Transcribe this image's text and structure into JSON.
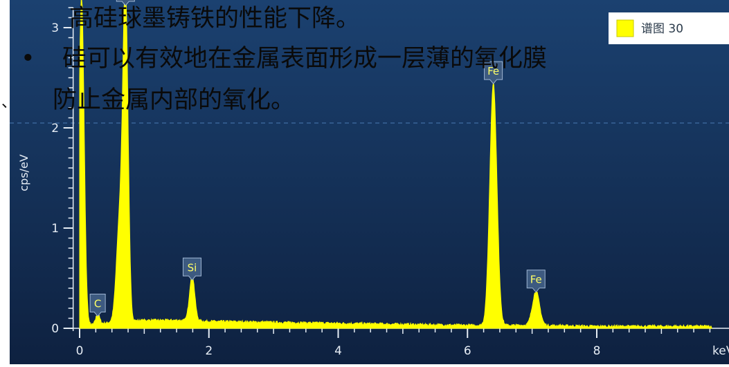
{
  "slide": {
    "line1": "高硅球墨铸铁的性能下降。",
    "bullet": "•",
    "line2": "硅可以有效地在金属表面形成一层薄的氧化膜",
    "line3": "防止金属内部的氧化。",
    "mark": "、"
  },
  "colors": {
    "background_top": "#193c66",
    "background_bottom": "#0f2442",
    "spectrum": "#ffff00",
    "axis": "#e6edf5",
    "label_box": "#3d5a80"
  },
  "chart_data": {
    "type": "area",
    "xlabel": "keV",
    "ylabel": "cps/eV",
    "xlim": [
      -0.1,
      9.8
    ],
    "ylim": [
      0,
      3.2
    ],
    "x_ticks": [
      0,
      2,
      4,
      6,
      8
    ],
    "y_ticks": [
      0,
      1,
      2,
      3
    ],
    "legend": {
      "label": "谱图 30",
      "placement": "top-right"
    },
    "series": [
      {
        "name": "谱图 30",
        "baseline": [
          [
            0.0,
            0.02
          ],
          [
            0.5,
            0.06
          ],
          [
            1.0,
            0.08
          ],
          [
            1.5,
            0.08
          ],
          [
            2.0,
            0.07
          ],
          [
            3.0,
            0.06
          ],
          [
            4.0,
            0.05
          ],
          [
            5.0,
            0.04
          ],
          [
            6.0,
            0.03
          ],
          [
            7.0,
            0.03
          ],
          [
            8.0,
            0.02
          ],
          [
            9.5,
            0.02
          ]
        ],
        "peaks": [
          {
            "energy": 0.03,
            "height": 3.3,
            "width": 0.04,
            "label": ""
          },
          {
            "energy": 0.28,
            "height": 0.1,
            "width": 0.03,
            "label": "C"
          },
          {
            "energy": 0.62,
            "height": 1.0,
            "width": 0.05,
            "label": ""
          },
          {
            "energy": 0.71,
            "height": 3.2,
            "width": 0.04,
            "label": "Fe"
          },
          {
            "energy": 1.74,
            "height": 0.46,
            "width": 0.04,
            "label": "Si"
          },
          {
            "energy": 6.4,
            "height": 2.42,
            "width": 0.055,
            "label": "Fe"
          },
          {
            "energy": 7.06,
            "height": 0.34,
            "width": 0.055,
            "label": "Fe"
          }
        ]
      }
    ],
    "peak_labels": [
      {
        "text": "C",
        "energy": 0.28,
        "height": 0.1
      },
      {
        "text": "Fe",
        "energy": 0.71,
        "height": 3.2
      },
      {
        "text": "Si",
        "energy": 1.74,
        "height": 0.46
      },
      {
        "text": "Fe",
        "energy": 6.4,
        "height": 2.42
      },
      {
        "text": "Fe",
        "energy": 7.06,
        "height": 0.34
      }
    ],
    "grid": false
  }
}
